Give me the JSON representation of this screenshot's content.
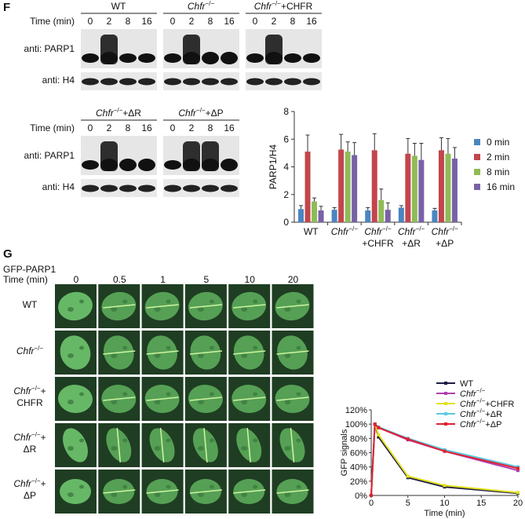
{
  "panel_f": {
    "label": "F",
    "time_label": "Time (min)",
    "lanes": [
      "0",
      "2",
      "8",
      "16"
    ],
    "row_labels": [
      "anti: PARP1",
      "anti: H4"
    ],
    "groups": [
      "WT",
      "Chfr−/−",
      "Chfr−/−+CHFR",
      "Chfr−/−+ΔR",
      "Chfr−/−+ΔP"
    ]
  },
  "panel_g": {
    "label": "G",
    "protein": "GFP-PARP1",
    "time_label": "Time (min)",
    "times": [
      "0",
      "0.5",
      "1",
      "5",
      "10",
      "20"
    ],
    "rows": [
      "WT",
      "Chfr−/−",
      "Chfr−/−+CHFR",
      "Chfr−/−+ΔR",
      "Chfr−/−+ΔP"
    ]
  },
  "chart_data": [
    {
      "type": "bar",
      "y_label": "PARP1/H4",
      "categories": [
        "WT",
        "Chfr−/−",
        "Chfr−/−+CHFR",
        "Chfr−/−+ΔR",
        "Chfr−/−+ΔP"
      ],
      "ylim": [
        0,
        8
      ],
      "yticks": [
        0,
        2,
        4,
        6,
        8
      ],
      "series": [
        {
          "name": "0 min",
          "color": "#4a86c0",
          "values": [
            0.95,
            0.9,
            0.85,
            1.05,
            0.85
          ],
          "errors": [
            0.25,
            0.15,
            0.2,
            0.15,
            0.15
          ]
        },
        {
          "name": "2 min",
          "color": "#c2464b",
          "values": [
            5.1,
            5.25,
            5.2,
            4.95,
            5.2
          ],
          "errors": [
            1.2,
            1.1,
            1.2,
            1.1,
            0.9
          ]
        },
        {
          "name": "8 min",
          "color": "#8fbb58",
          "values": [
            1.5,
            5.1,
            1.6,
            4.8,
            4.95
          ],
          "errors": [
            0.25,
            0.7,
            0.8,
            0.9,
            1.1
          ]
        },
        {
          "name": "16 min",
          "color": "#7862a6",
          "values": [
            0.85,
            4.85,
            0.9,
            4.5,
            4.6
          ],
          "errors": [
            0.3,
            0.9,
            0.5,
            1.2,
            0.8
          ]
        }
      ]
    },
    {
      "type": "line",
      "xlabel": "Time (min)",
      "ylabel": "GFP signals",
      "x": [
        0,
        0.5,
        1,
        5,
        10,
        20
      ],
      "xlim": [
        0,
        20
      ],
      "xticks": [
        0,
        5,
        10,
        15,
        20
      ],
      "ylim": [
        0,
        120
      ],
      "yticks": [
        {
          "value": 0,
          "label": "0%"
        },
        {
          "value": 20,
          "label": "20%"
        },
        {
          "value": 40,
          "label": "40%"
        },
        {
          "value": 60,
          "label": "60%"
        },
        {
          "value": 80,
          "label": "80%"
        },
        {
          "value": 100,
          "label": "100%"
        },
        {
          "value": 120,
          "label": "120%"
        }
      ],
      "series": [
        {
          "name": "WT",
          "color": "#1c1c44",
          "values": [
            0,
            100,
            82,
            25,
            12,
            3
          ]
        },
        {
          "name": "Chfr−/−",
          "color": "#b040b0",
          "values": [
            0,
            100,
            95,
            78,
            62,
            35
          ]
        },
        {
          "name": "Chfr−/−+CHFR",
          "color": "#e2e020",
          "values": [
            0,
            100,
            85,
            27,
            14,
            4
          ]
        },
        {
          "name": "Chfr−/−+ΔR",
          "color": "#5cc8e0",
          "values": [
            0,
            100,
            96,
            80,
            64,
            40
          ]
        },
        {
          "name": "Chfr−/−+ΔP",
          "color": "#e02030",
          "values": [
            0,
            100,
            95,
            79,
            62,
            38
          ]
        }
      ]
    }
  ]
}
